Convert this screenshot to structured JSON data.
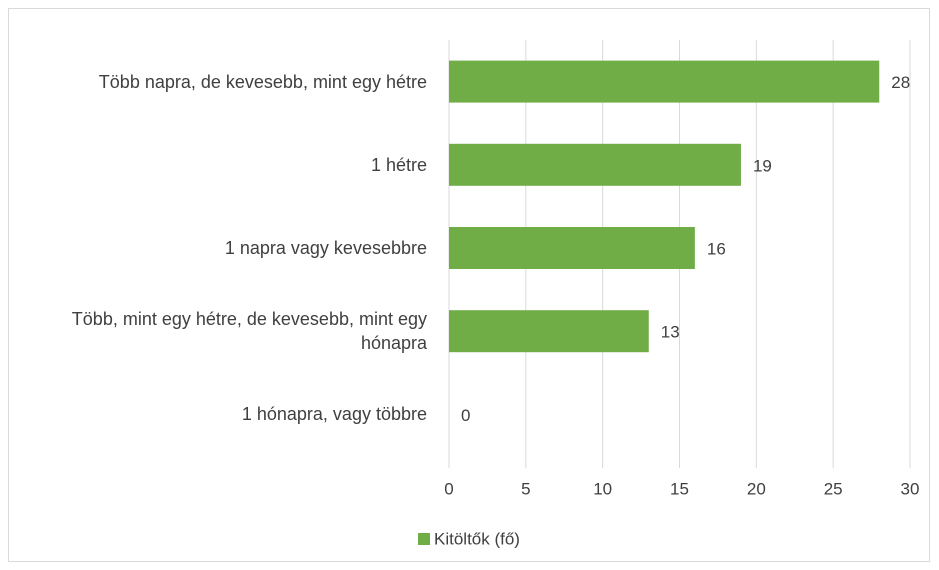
{
  "chart_data": {
    "type": "barh",
    "categories": [
      "Több napra, de kevesebb, mint egy hétre",
      "1 hétre",
      "1 napra vagy kevesebbre",
      "Több, mint egy hétre, de kevesebb, mint egy hónapra",
      "1 hónapra, vagy többre"
    ],
    "series": [
      {
        "name": "Kitöltők (fő)",
        "color": "#70ad47",
        "values": [
          28,
          19,
          16,
          13,
          0
        ]
      }
    ],
    "xlim": [
      0,
      30
    ],
    "xticks": [
      0,
      5,
      10,
      15,
      20,
      25,
      30
    ],
    "grid": true,
    "legend": "bottom"
  }
}
